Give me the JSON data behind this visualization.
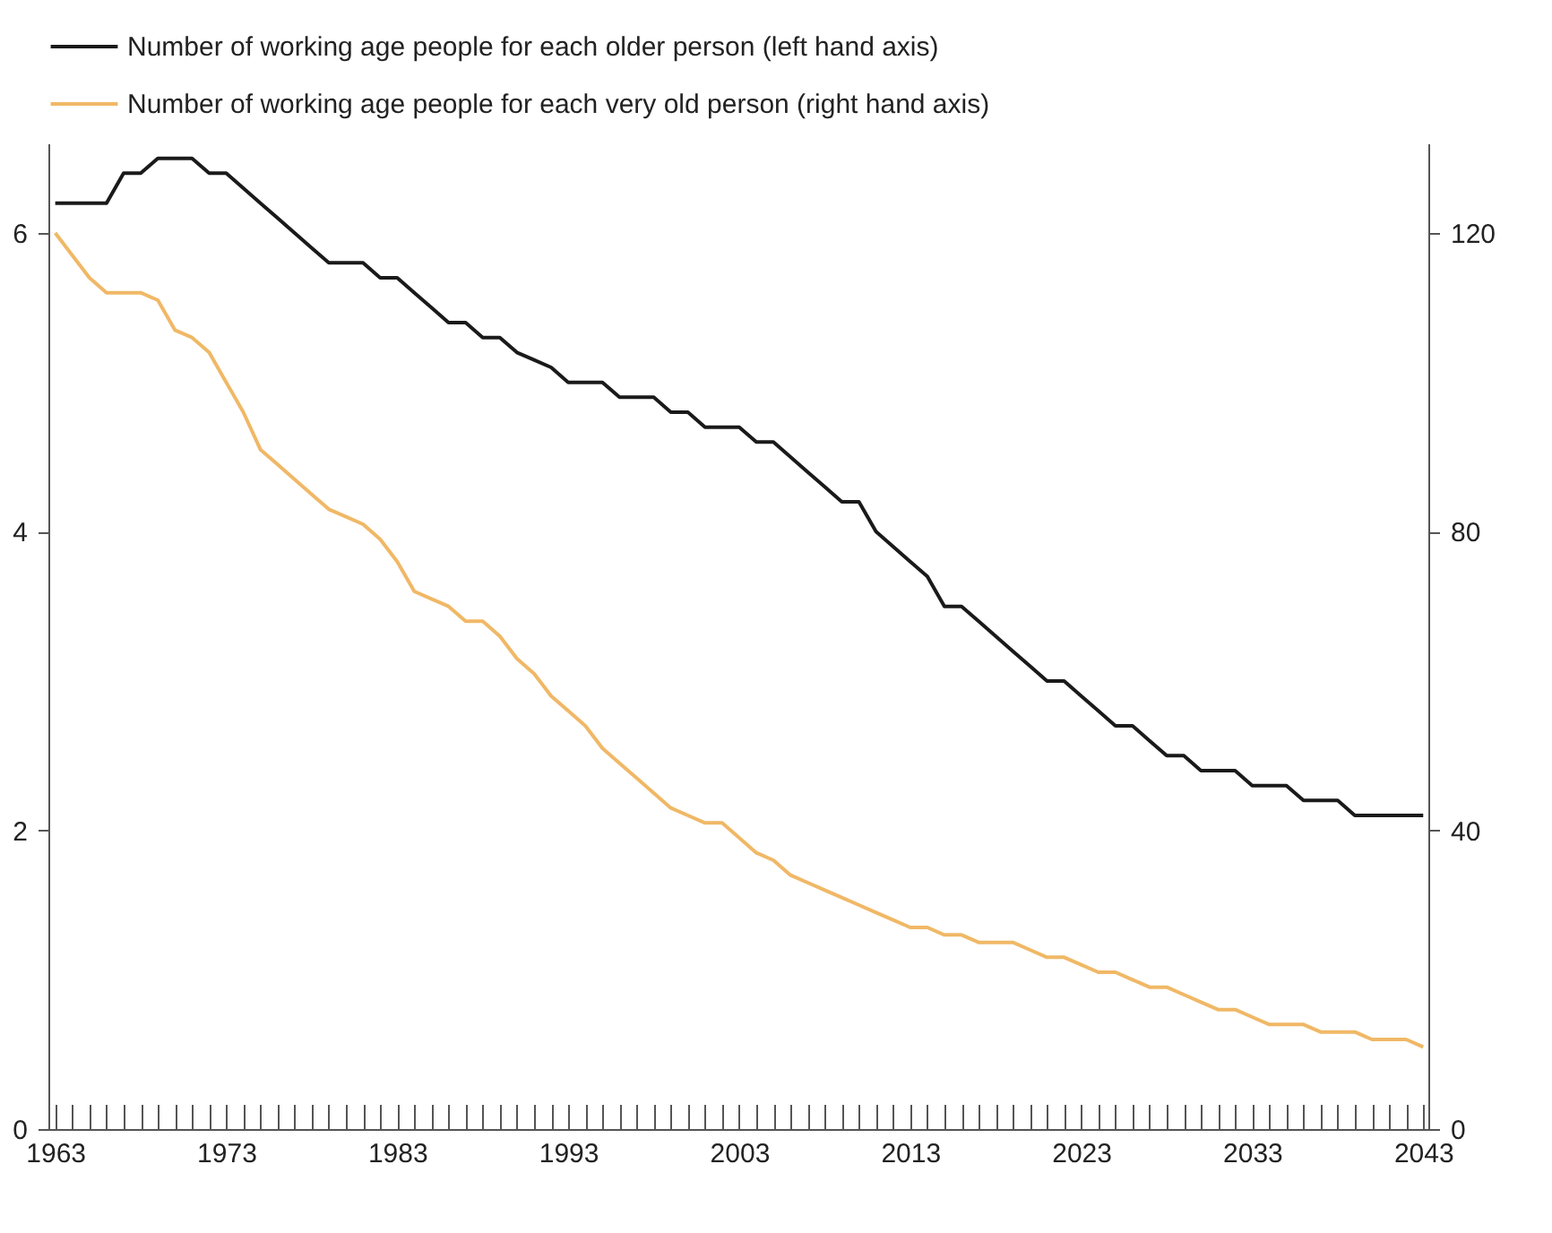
{
  "chart_data": {
    "type": "line",
    "x": [
      1963,
      1964,
      1965,
      1966,
      1967,
      1968,
      1969,
      1970,
      1971,
      1972,
      1973,
      1974,
      1975,
      1976,
      1977,
      1978,
      1979,
      1980,
      1981,
      1982,
      1983,
      1984,
      1985,
      1986,
      1987,
      1988,
      1989,
      1990,
      1991,
      1992,
      1993,
      1994,
      1995,
      1996,
      1997,
      1998,
      1999,
      2000,
      2001,
      2002,
      2003,
      2004,
      2005,
      2006,
      2007,
      2008,
      2009,
      2010,
      2011,
      2012,
      2013,
      2014,
      2015,
      2016,
      2017,
      2018,
      2019,
      2020,
      2021,
      2022,
      2023,
      2024,
      2025,
      2026,
      2027,
      2028,
      2029,
      2030,
      2031,
      2032,
      2033,
      2034,
      2035,
      2036,
      2037,
      2038,
      2039,
      2040,
      2041,
      2042,
      2043
    ],
    "series": [
      {
        "name": "Number of working age people for each older person (left hand axis)",
        "color": "#1a1a1a",
        "values": [
          6.2,
          6.2,
          6.2,
          6.2,
          6.4,
          6.4,
          6.5,
          6.5,
          6.5,
          6.4,
          6.4,
          6.3,
          6.2,
          6.1,
          6.0,
          5.9,
          5.8,
          5.8,
          5.8,
          5.7,
          5.7,
          5.6,
          5.5,
          5.4,
          5.4,
          5.3,
          5.3,
          5.2,
          5.15,
          5.1,
          5.0,
          5.0,
          5.0,
          4.9,
          4.9,
          4.9,
          4.8,
          4.8,
          4.7,
          4.7,
          4.7,
          4.6,
          4.6,
          4.5,
          4.4,
          4.3,
          4.2,
          4.2,
          4.0,
          3.9,
          3.8,
          3.7,
          3.5,
          3.5,
          3.4,
          3.3,
          3.2,
          3.1,
          3.0,
          3.0,
          2.9,
          2.8,
          2.7,
          2.7,
          2.6,
          2.5,
          2.5,
          2.4,
          2.4,
          2.4,
          2.3,
          2.3,
          2.3,
          2.2,
          2.2,
          2.2,
          2.1,
          2.1,
          2.1,
          2.1,
          2.1
        ]
      },
      {
        "name": "Number of working age people for each very old person (right hand axis)",
        "color": "#f0b866",
        "axis": "y2",
        "values": [
          120,
          117,
          114,
          112,
          112,
          112,
          111,
          107,
          106,
          104,
          100,
          96,
          91,
          89,
          87,
          85,
          83,
          82,
          81,
          79,
          76,
          72,
          71,
          70,
          68,
          68,
          66,
          63,
          61,
          58,
          56,
          54,
          51,
          49,
          47,
          45,
          43,
          42,
          41,
          41,
          39,
          37,
          36,
          34,
          33,
          32,
          31,
          30,
          29,
          28,
          27,
          27,
          26,
          26,
          25,
          25,
          25,
          24,
          23,
          23,
          22,
          21,
          21,
          20,
          19,
          19,
          18,
          17,
          16,
          16,
          15,
          14,
          14,
          14,
          13,
          13,
          13,
          12,
          12,
          12,
          11
        ]
      }
    ],
    "xlim": [
      1962.6,
      2043.3
    ],
    "xticks": [
      1963,
      {
        "value": 1964,
        "label": null
      },
      {
        "value": 1965,
        "label": null
      },
      {
        "value": 1966,
        "label": null
      },
      {
        "value": 1967,
        "label": null
      },
      {
        "value": 1968,
        "label": null
      },
      {
        "value": 1969,
        "label": null
      },
      {
        "value": 1970,
        "label": null
      },
      {
        "value": 1971,
        "label": null
      },
      {
        "value": 1972,
        "label": null
      },
      1973,
      {
        "value": 1974,
        "label": null
      },
      {
        "value": 1975,
        "label": null
      },
      {
        "value": 1976,
        "label": null
      },
      {
        "value": 1977,
        "label": null
      },
      {
        "value": 1978,
        "label": null
      },
      {
        "value": 1979,
        "label": null
      },
      {
        "value": 1980,
        "label": null
      },
      {
        "value": 1981,
        "label": null
      },
      {
        "value": 1982,
        "label": null
      },
      1983,
      {
        "value": 1984,
        "label": null
      },
      {
        "value": 1985,
        "label": null
      },
      {
        "value": 1986,
        "label": null
      },
      {
        "value": 1987,
        "label": null
      },
      {
        "value": 1988,
        "label": null
      },
      {
        "value": 1989,
        "label": null
      },
      {
        "value": 1990,
        "label": null
      },
      {
        "value": 1991,
        "label": null
      },
      {
        "value": 1992,
        "label": null
      },
      1993,
      {
        "value": 1994,
        "label": null
      },
      {
        "value": 1995,
        "label": null
      },
      {
        "value": 1996,
        "label": null
      },
      {
        "value": 1997,
        "label": null
      },
      {
        "value": 1998,
        "label": null
      },
      {
        "value": 1999,
        "label": null
      },
      {
        "value": 2000,
        "label": null
      },
      {
        "value": 2001,
        "label": null
      },
      {
        "value": 2002,
        "label": null
      },
      2003,
      {
        "value": 2004,
        "label": null
      },
      {
        "value": 2005,
        "label": null
      },
      {
        "value": 2006,
        "label": null
      },
      {
        "value": 2007,
        "label": null
      },
      {
        "value": 2008,
        "label": null
      },
      {
        "value": 2009,
        "label": null
      },
      {
        "value": 2010,
        "label": null
      },
      {
        "value": 2011,
        "label": null
      },
      {
        "value": 2012,
        "label": null
      },
      2013,
      {
        "value": 2014,
        "label": null
      },
      {
        "value": 2015,
        "label": null
      },
      {
        "value": 2016,
        "label": null
      },
      {
        "value": 2017,
        "label": null
      },
      {
        "value": 2018,
        "label": null
      },
      {
        "value": 2019,
        "label": null
      },
      {
        "value": 2020,
        "label": null
      },
      {
        "value": 2021,
        "label": null
      },
      {
        "value": 2022,
        "label": null
      },
      2023,
      {
        "value": 2024,
        "label": null
      },
      {
        "value": 2025,
        "label": null
      },
      {
        "value": 2026,
        "label": null
      },
      {
        "value": 2027,
        "label": null
      },
      {
        "value": 2028,
        "label": null
      },
      {
        "value": 2029,
        "label": null
      },
      {
        "value": 2030,
        "label": null
      },
      {
        "value": 2031,
        "label": null
      },
      {
        "value": 2032,
        "label": null
      },
      2033,
      {
        "value": 2034,
        "label": null
      },
      {
        "value": 2035,
        "label": null
      },
      {
        "value": 2036,
        "label": null
      },
      {
        "value": 2037,
        "label": null
      },
      {
        "value": 2038,
        "label": null
      },
      {
        "value": 2039,
        "label": null
      },
      {
        "value": 2040,
        "label": null
      },
      {
        "value": 2041,
        "label": null
      },
      {
        "value": 2042,
        "label": null
      },
      2043
    ],
    "ylim": [
      0,
      6.6
    ],
    "yticks": [
      0,
      2,
      4,
      6
    ],
    "y2lim": [
      0,
      132
    ],
    "y2ticks": [
      0,
      40,
      80,
      120
    ],
    "grid": false,
    "legend": "top",
    "marker": "none",
    "line_style": "solid"
  }
}
